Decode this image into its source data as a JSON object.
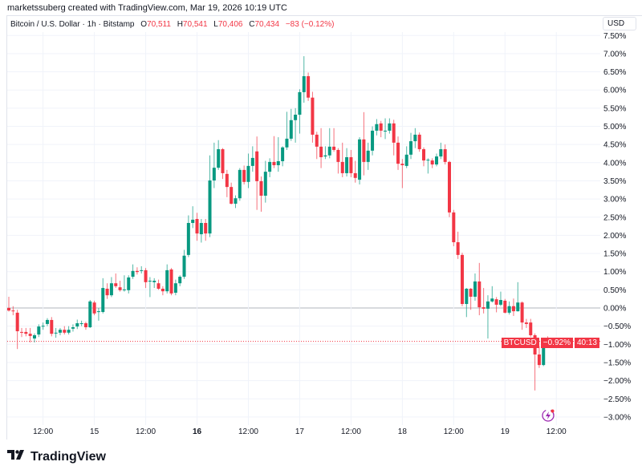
{
  "header": {
    "credit": "marketssuberg created with TradingView.com, Mar 19, 2026 10:19 UTC"
  },
  "legend": {
    "symbol": "Bitcoin / U.S. Dollar · 1h · Bitstamp",
    "o_label": "O",
    "o": "70,511",
    "h_label": "H",
    "h": "70,541",
    "l_label": "L",
    "l": "70,406",
    "c_label": "C",
    "c": "70,434",
    "change": "−83 (−0.12%)"
  },
  "currency_button": "USD",
  "price_tag": {
    "symbol": "BTCUSD",
    "value": "−0.92%",
    "countdown": "40:13",
    "value_num": -0.92
  },
  "footer": {
    "brand": "TradingView"
  },
  "colors": {
    "up": "#089981",
    "down": "#f23645",
    "grid": "#f0f3fa",
    "zero_line": "#b2b5be",
    "lightning": "#9c27b0"
  },
  "icons": {
    "logo": "tradingview-logo-icon",
    "lightning": "lightning-icon"
  },
  "chart_data": {
    "type": "candlestick",
    "interval": "1h",
    "y_unit": "%",
    "ylim": [
      -3.25,
      7.6
    ],
    "grid": true,
    "y_ticks": [
      "7.50%",
      "7.00%",
      "6.50%",
      "6.00%",
      "5.50%",
      "5.00%",
      "4.50%",
      "4.00%",
      "3.50%",
      "3.00%",
      "2.50%",
      "2.00%",
      "1.50%",
      "1.00%",
      "0.50%",
      "0.00%",
      "−0.50%",
      "−1.00%",
      "−1.50%",
      "−2.00%",
      "−2.50%",
      "−3.00%"
    ],
    "y_tick_values": [
      7.5,
      7,
      6.5,
      6,
      5.5,
      5,
      4.5,
      4,
      3.5,
      3,
      2.5,
      2,
      1.5,
      1,
      0.5,
      0,
      -0.5,
      -1,
      -1.5,
      -2,
      -2.5,
      -3
    ],
    "x_ticks": [
      "12:00",
      "15",
      "12:00",
      "16",
      "12:00",
      "17",
      "12:00",
      "18",
      "12:00",
      "19",
      "12:00"
    ],
    "ohlc": [
      [
        0.0,
        0.31,
        -0.1,
        -0.07
      ],
      [
        -0.07,
        0.05,
        -0.2,
        -0.09
      ],
      [
        -0.13,
        -0.05,
        -1.13,
        -0.64
      ],
      [
        -0.66,
        -0.55,
        -0.8,
        -0.68
      ],
      [
        -0.66,
        -0.55,
        -0.78,
        -0.71
      ],
      [
        -0.71,
        -0.55,
        -0.95,
        -0.77
      ],
      [
        -0.84,
        -0.7,
        -0.95,
        -0.75
      ],
      [
        -0.73,
        -0.45,
        -0.8,
        -0.51
      ],
      [
        -0.51,
        -0.4,
        -0.6,
        -0.49
      ],
      [
        -0.44,
        -0.28,
        -0.5,
        -0.33
      ],
      [
        -0.33,
        -0.25,
        -0.78,
        -0.71
      ],
      [
        -0.68,
        -0.55,
        -0.82,
        -0.68
      ],
      [
        -0.68,
        -0.55,
        -0.75,
        -0.6
      ],
      [
        -0.6,
        -0.5,
        -0.73,
        -0.68
      ],
      [
        -0.68,
        -0.5,
        -0.73,
        -0.6
      ],
      [
        -0.57,
        -0.45,
        -0.65,
        -0.53
      ],
      [
        -0.51,
        -0.32,
        -0.58,
        -0.42
      ],
      [
        -0.42,
        -0.35,
        -0.5,
        -0.42
      ],
      [
        -0.42,
        -0.38,
        -0.6,
        -0.53
      ],
      [
        -0.53,
        0.22,
        -0.55,
        0.18
      ],
      [
        0.15,
        0.2,
        -0.2,
        -0.15
      ],
      [
        -0.11,
        0.0,
        -0.35,
        -0.09
      ],
      [
        -0.11,
        0.82,
        -0.15,
        0.55
      ],
      [
        0.53,
        0.68,
        0.25,
        0.35
      ],
      [
        0.35,
        0.85,
        0.3,
        0.68
      ],
      [
        0.68,
        0.95,
        0.55,
        0.6
      ],
      [
        0.57,
        0.75,
        0.45,
        0.49
      ],
      [
        0.51,
        0.9,
        0.45,
        0.51
      ],
      [
        0.49,
        0.9,
        0.4,
        0.84
      ],
      [
        0.86,
        1.2,
        0.8,
        1.02
      ],
      [
        1.02,
        1.12,
        0.92,
        0.99
      ],
      [
        1.04,
        1.15,
        0.95,
        1.04
      ],
      [
        1.04,
        1.1,
        0.55,
        0.71
      ],
      [
        0.75,
        0.85,
        0.3,
        0.75
      ],
      [
        0.71,
        0.82,
        0.55,
        0.75
      ],
      [
        0.68,
        0.78,
        0.5,
        0.53
      ],
      [
        0.53,
        0.6,
        0.35,
        0.46
      ],
      [
        0.46,
        1.2,
        0.4,
        1.04
      ],
      [
        1.06,
        1.1,
        0.35,
        0.4
      ],
      [
        0.42,
        0.78,
        0.35,
        0.68
      ],
      [
        0.68,
        0.9,
        0.6,
        0.86
      ],
      [
        0.86,
        1.6,
        0.8,
        1.44
      ],
      [
        1.46,
        2.55,
        1.4,
        2.34
      ],
      [
        2.34,
        2.8,
        2.2,
        2.43
      ],
      [
        2.45,
        2.62,
        1.85,
        2.05
      ],
      [
        2.03,
        2.45,
        1.8,
        2.34
      ],
      [
        2.34,
        2.45,
        1.85,
        2.05
      ],
      [
        2.05,
        4.2,
        1.95,
        3.51
      ],
      [
        3.51,
        4.55,
        3.3,
        3.86
      ],
      [
        3.86,
        4.62,
        3.8,
        4.37
      ],
      [
        4.37,
        4.4,
        3.55,
        3.71
      ],
      [
        3.69,
        3.8,
        3.05,
        3.33
      ],
      [
        3.33,
        3.45,
        2.85,
        2.87
      ],
      [
        2.87,
        3.1,
        2.75,
        3.02
      ],
      [
        3.02,
        3.85,
        2.95,
        3.8
      ],
      [
        3.8,
        3.92,
        3.4,
        3.47
      ],
      [
        3.47,
        4.25,
        3.3,
        3.91
      ],
      [
        3.91,
        4.45,
        3.75,
        4.13
      ],
      [
        4.31,
        4.72,
        2.7,
        3.49
      ],
      [
        3.49,
        3.62,
        2.65,
        3.09
      ],
      [
        3.09,
        4.05,
        2.9,
        3.75
      ],
      [
        3.75,
        4.12,
        3.6,
        4.02
      ],
      [
        4.02,
        4.73,
        3.85,
        3.93
      ],
      [
        3.93,
        4.7,
        3.75,
        4.04
      ],
      [
        4.04,
        4.45,
        3.9,
        4.42
      ],
      [
        4.42,
        5.4,
        4.35,
        4.66
      ],
      [
        4.66,
        5.48,
        4.6,
        5.17
      ],
      [
        5.17,
        5.5,
        4.55,
        5.32
      ],
      [
        5.32,
        6.02,
        4.8,
        5.94
      ],
      [
        5.94,
        6.93,
        5.65,
        6.38
      ],
      [
        6.38,
        6.48,
        5.7,
        5.79
      ],
      [
        5.79,
        5.95,
        4.55,
        4.77
      ],
      [
        4.77,
        4.85,
        4.1,
        4.44
      ],
      [
        4.44,
        4.95,
        3.85,
        4.15
      ],
      [
        4.17,
        4.45,
        4.1,
        4.2
      ],
      [
        4.2,
        4.95,
        4.12,
        4.44
      ],
      [
        4.44,
        4.95,
        4.3,
        4.35
      ],
      [
        4.35,
        4.4,
        3.7,
        4.02
      ],
      [
        4.02,
        4.55,
        3.6,
        3.71
      ],
      [
        3.71,
        4.4,
        3.62,
        4.15
      ],
      [
        4.15,
        4.35,
        3.6,
        3.71
      ],
      [
        3.71,
        4.05,
        3.45,
        3.58
      ],
      [
        3.53,
        4.7,
        3.4,
        4.64
      ],
      [
        4.64,
        5.39,
        3.65,
        4.02
      ],
      [
        4.02,
        4.55,
        3.8,
        4.33
      ],
      [
        4.33,
        5.0,
        4.2,
        4.88
      ],
      [
        4.88,
        5.2,
        4.75,
        5.06
      ],
      [
        5.08,
        5.15,
        4.7,
        4.88
      ],
      [
        4.88,
        5.22,
        4.65,
        4.88
      ],
      [
        4.88,
        5.22,
        4.8,
        5.08
      ],
      [
        5.08,
        5.18,
        4.2,
        4.55
      ],
      [
        4.55,
        4.72,
        3.8,
        3.97
      ],
      [
        3.97,
        4.1,
        3.3,
        3.93
      ],
      [
        3.91,
        4.45,
        3.85,
        4.22
      ],
      [
        4.22,
        4.82,
        4.1,
        4.59
      ],
      [
        4.59,
        4.95,
        4.4,
        4.77
      ],
      [
        4.77,
        4.83,
        4.3,
        4.37
      ],
      [
        4.37,
        4.42,
        3.9,
        4.06
      ],
      [
        4.08,
        4.12,
        3.7,
        4.08
      ],
      [
        4.06,
        4.12,
        3.85,
        3.95
      ],
      [
        3.95,
        4.25,
        3.9,
        4.17
      ],
      [
        4.17,
        4.55,
        4.1,
        4.37
      ],
      [
        4.37,
        4.5,
        3.95,
        4.02
      ],
      [
        4.02,
        4.05,
        2.5,
        2.63
      ],
      [
        2.63,
        2.7,
        1.7,
        1.81
      ],
      [
        1.81,
        2.1,
        1.35,
        1.46
      ],
      [
        1.46,
        1.52,
        0.05,
        0.11
      ],
      [
        0.11,
        0.55,
        -0.25,
        0.53
      ],
      [
        0.53,
        0.55,
        -0.05,
        0.31
      ],
      [
        0.31,
        0.95,
        0.2,
        0.73
      ],
      [
        0.73,
        1.24,
        -0.2,
        0.02
      ],
      [
        0.02,
        0.55,
        -0.15,
        -0.02
      ],
      [
        -0.02,
        0.35,
        -0.84,
        0.18
      ],
      [
        0.18,
        0.6,
        0.15,
        0.26
      ],
      [
        0.24,
        0.3,
        -0.12,
        0.09
      ],
      [
        0.09,
        0.45,
        0.05,
        0.22
      ],
      [
        0.2,
        0.25,
        -0.15,
        -0.13
      ],
      [
        -0.13,
        0.18,
        -0.18,
        0.05
      ],
      [
        0.05,
        0.26,
        -0.22,
        -0.09
      ],
      [
        -0.09,
        0.71,
        -0.1,
        0.15
      ],
      [
        0.15,
        0.18,
        -0.6,
        -0.4
      ],
      [
        -0.4,
        -0.3,
        -0.55,
        -0.44
      ],
      [
        -0.4,
        -0.3,
        -0.8,
        -0.75
      ],
      [
        -0.75,
        -0.7,
        -2.27,
        -1.28
      ],
      [
        -1.28,
        -1.05,
        -1.65,
        -1.57
      ],
      [
        -1.57,
        -0.82,
        -1.6,
        -0.82
      ],
      [
        -0.82,
        -0.78,
        -0.95,
        -0.95
      ]
    ]
  }
}
